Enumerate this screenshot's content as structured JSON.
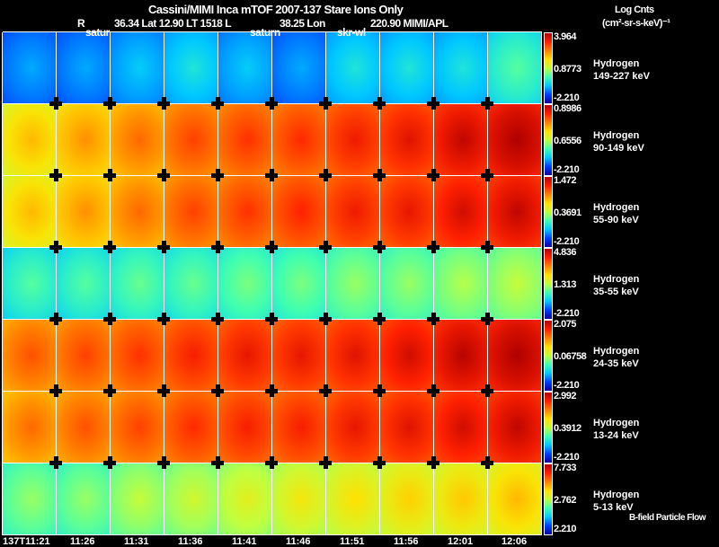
{
  "header": {
    "title": "Cassini/MIMI Inca mTOF  2007-137   Stare   Ions Only",
    "r_label": "R",
    "r_value": "36.34 Lat 12.90 LT 1518 L",
    "l_value": "38.25 Lon",
    "lon_value": "220.90  MIMI/APL",
    "overlays": [
      "satur",
      "saturn",
      "skr-wl"
    ]
  },
  "units": {
    "line1": "Log Cnts",
    "line2": "(cm²-sr-s-keV)⁻¹"
  },
  "footer_note": "B-field Particle Flow",
  "chart_data": {
    "type": "heatmap",
    "x_ticks": [
      "137T11:21",
      "11:26",
      "11:31",
      "11:36",
      "11:41",
      "11:46",
      "11:51",
      "11:56",
      "12:01",
      "12:06"
    ],
    "colormap": "jet",
    "panels": [
      {
        "species": "Hydrogen",
        "energy": "149-227 keV",
        "max": "3.964",
        "mid": "0.8773",
        "min": "-2.210",
        "levels": [
          0.2,
          0.2,
          0.25,
          0.3,
          0.25,
          0.2,
          0.3,
          0.3,
          0.3,
          0.38
        ]
      },
      {
        "species": "Hydrogen",
        "energy": "90-149 keV",
        "max": "0.8986",
        "mid": "0.6556",
        "min": "-2.210",
        "levels": [
          0.65,
          0.7,
          0.75,
          0.8,
          0.82,
          0.83,
          0.86,
          0.88,
          0.92,
          0.95
        ]
      },
      {
        "species": "Hydrogen",
        "energy": "55-90 keV",
        "max": "1.472",
        "mid": "0.3691",
        "min": "-2.210",
        "levels": [
          0.65,
          0.7,
          0.75,
          0.8,
          0.82,
          0.84,
          0.86,
          0.87,
          0.9,
          0.92
        ]
      },
      {
        "species": "Hydrogen",
        "energy": "35-55 keV",
        "max": "4.836",
        "mid": "1.313",
        "min": "-2.210",
        "levels": [
          0.38,
          0.38,
          0.4,
          0.4,
          0.42,
          0.42,
          0.45,
          0.45,
          0.48,
          0.5
        ]
      },
      {
        "species": "Hydrogen",
        "energy": "24-35 keV",
        "max": "2.075",
        "mid": "0.06758",
        "min": "-2.210",
        "levels": [
          0.78,
          0.8,
          0.82,
          0.85,
          0.87,
          0.87,
          0.88,
          0.9,
          0.93,
          0.95
        ]
      },
      {
        "species": "Hydrogen",
        "energy": "13-24 keV",
        "max": "2.992",
        "mid": "0.3912",
        "min": "-2.210",
        "levels": [
          0.75,
          0.78,
          0.8,
          0.83,
          0.85,
          0.85,
          0.87,
          0.88,
          0.9,
          0.92
        ]
      },
      {
        "species": "Hydrogen",
        "energy": "5-13 keV",
        "max": "7.733",
        "mid": "2.762",
        "min": "2.210",
        "levels": [
          0.45,
          0.45,
          0.5,
          0.52,
          0.55,
          0.58,
          0.6,
          0.62,
          0.63,
          0.65
        ]
      }
    ]
  }
}
